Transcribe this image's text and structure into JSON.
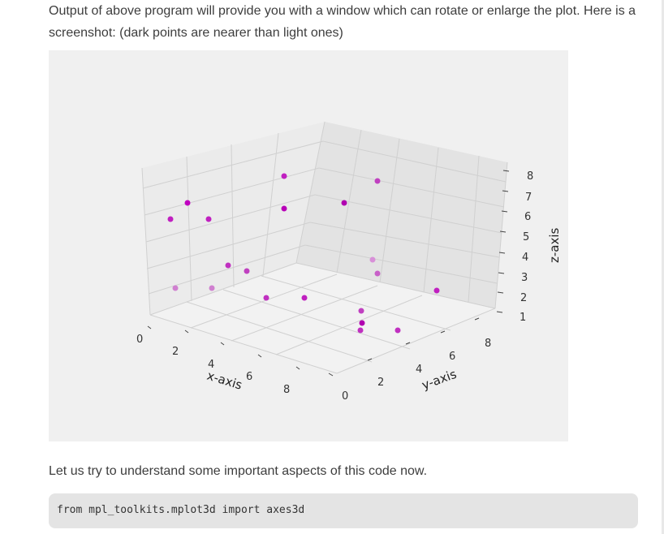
{
  "article": {
    "intro_line1": "Output of above program will provide you with a window which can rotate or enlarge the plot. Here is a",
    "intro_line2": "screenshot: (dark points are nearer than light ones)",
    "section_text": "Let us try to understand some important aspects of this code now.",
    "code": "from mpl_toolkits.mplot3d import axes3d"
  },
  "chart_data": {
    "type": "scatter",
    "projection": "3d",
    "title": "",
    "xlabel": "x-axis",
    "ylabel": "y-axis",
    "zlabel": "z-axis",
    "x_ticks": [
      "0",
      "2",
      "4",
      "6",
      "8"
    ],
    "y_ticks": [
      "0",
      "2",
      "4",
      "6",
      "8"
    ],
    "z_ticks": [
      "1",
      "2",
      "3",
      "4",
      "5",
      "6",
      "7",
      "8"
    ],
    "marker_color": "#c000c0",
    "background": "#f0f0f0",
    "grid": true
  }
}
